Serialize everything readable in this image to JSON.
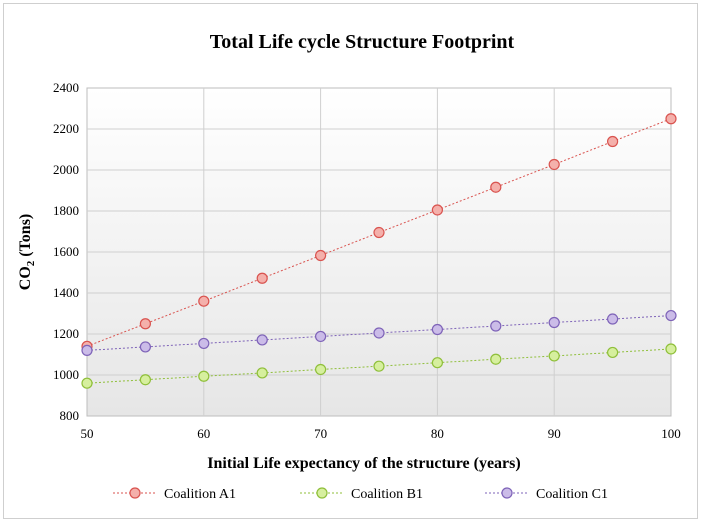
{
  "chart_data": {
    "type": "line",
    "title": "Total Life cycle Structure Footprint",
    "xlabel": "Initial Life expectancy of the structure (years)",
    "ylabel": {
      "main": "CO",
      "sub": "2",
      "rest": " (Tons)"
    },
    "x": [
      50,
      55,
      60,
      65,
      70,
      75,
      80,
      85,
      90,
      95,
      100
    ],
    "xlim": [
      50,
      100
    ],
    "ylim": [
      800,
      2400
    ],
    "xticks": [
      "50",
      "60",
      "70",
      "80",
      "90",
      "100"
    ],
    "xtick_values": [
      50,
      60,
      70,
      80,
      90,
      100
    ],
    "yticks": [
      "800",
      "1000",
      "1200",
      "1400",
      "1600",
      "1800",
      "2000",
      "2200",
      "2400"
    ],
    "ytick_values": [
      800,
      1000,
      1200,
      1400,
      1600,
      1800,
      2000,
      2200,
      2400
    ],
    "grid": true,
    "legend_position": "bottom",
    "series": [
      {
        "name": "Coalition A1",
        "color": "#d9534f",
        "fill": "#f4b0ab",
        "values": [
          1140,
          1250,
          1360,
          1472,
          1583,
          1695,
          1805,
          1916,
          2027,
          2139,
          2250
        ]
      },
      {
        "name": "Coalition B1",
        "color": "#8fbf3a",
        "fill": "#d6ef9e",
        "values": [
          960,
          977,
          994,
          1010,
          1027,
          1043,
          1060,
          1077,
          1093,
          1110,
          1127
        ]
      },
      {
        "name": "Coalition C1",
        "color": "#7e63b8",
        "fill": "#cbbce8",
        "values": [
          1120,
          1137,
          1154,
          1171,
          1188,
          1205,
          1222,
          1239,
          1256,
          1273,
          1290
        ]
      }
    ]
  }
}
